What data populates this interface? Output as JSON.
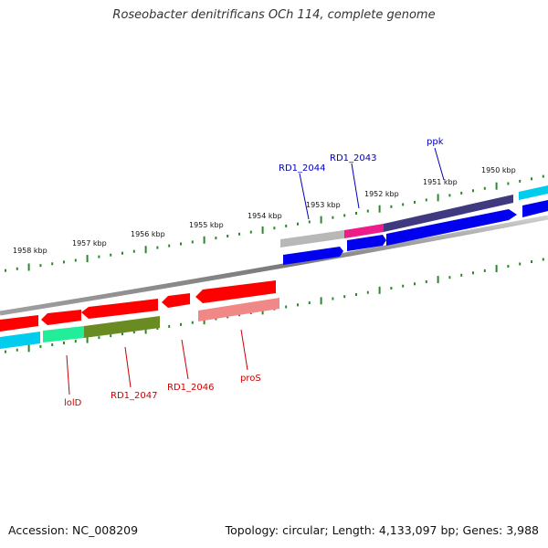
{
  "title": "Roseobacter denitrificans OCh 114, complete genome",
  "footer": {
    "accession": "Accession: NC_008209",
    "topology": "Topology: circular; Length: 4,133,097 bp; Genes: 3,988"
  },
  "scale_labels": [
    "1958 kbp",
    "1957 kbp",
    "1956 kbp",
    "1955 kbp",
    "1954 kbp",
    "1953 kbp",
    "1952 kbp",
    "1951 kbp",
    "1950 kbp"
  ],
  "gene_labels_top": [
    "RD1_2044",
    "RD1_2043",
    "ppk"
  ],
  "gene_labels_bottom": [
    "lolD",
    "RD1_2047",
    "RD1_2046",
    "proS"
  ],
  "colors": {
    "backbone": "#888888",
    "tick": "#2a8a2a",
    "cds": "#0000ee",
    "cds_alt": "#ff0000",
    "label_top": "#0000bb",
    "label_bottom": "#cc0000",
    "cog_cyan": "#00ccee",
    "cog_navy": "#3f3a80",
    "cog_gray": "#b4b4b4",
    "cog_pink": "#ee1c8a",
    "cog_green": "#22ee99",
    "cog_olive": "#6a8a22",
    "cog_rose": "#f08888"
  }
}
